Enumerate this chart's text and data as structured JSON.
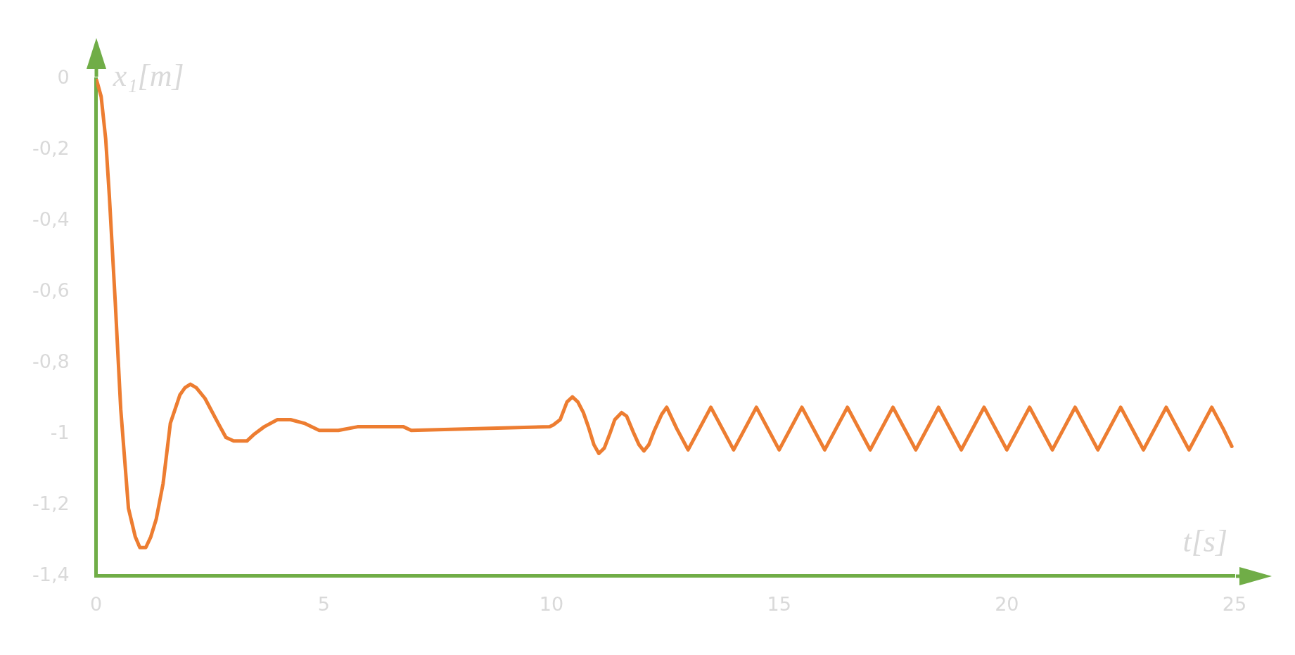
{
  "chart_data": {
    "type": "line",
    "xlabel": "t[s]",
    "ylabel": "x₁[m]",
    "xlim": [
      0,
      25
    ],
    "ylim": [
      -1.4,
      0
    ],
    "xticks": [
      0,
      5,
      10,
      15,
      20,
      25
    ],
    "yticks": [
      {
        "value": -1.4,
        "label": "-1,4"
      },
      {
        "value": -1.2,
        "label": "-1,2"
      },
      {
        "value": -1,
        "label": "-1"
      },
      {
        "value": -0.8,
        "label": "-0,8"
      },
      {
        "value": -0.6,
        "label": "-0,6"
      },
      {
        "value": -0.4,
        "label": "-0,4"
      },
      {
        "value": -0.2,
        "label": "-0,2"
      },
      {
        "value": 0,
        "label": "0"
      }
    ],
    "grid": false,
    "legend": false,
    "marker": "none",
    "line_style": "solid",
    "series": [
      {
        "color": "#ed7d31",
        "x": [
          0,
          0.03,
          0.11,
          0.21,
          0.29,
          0.42,
          0.54,
          0.71,
          0.86,
          0.96,
          1.09,
          1.2,
          1.32,
          1.47,
          1.63,
          1.84,
          1.95,
          2.07,
          2.2,
          2.39,
          2.68,
          2.85,
          3.02,
          3.19,
          3.31,
          3.48,
          3.69,
          3.98,
          4.27,
          4.57,
          4.9,
          5.32,
          5.74,
          6.75,
          6.92,
          9.96,
          10.04,
          10.19,
          10.34,
          10.46,
          10.58,
          10.7,
          10.81,
          10.93,
          11.04,
          11.16,
          11.28,
          11.39,
          11.54,
          11.65,
          11.8,
          11.92,
          12.03,
          12.14,
          12.26,
          12.42,
          12.53,
          12.75,
          13,
          13.25,
          13.5,
          13.75,
          14,
          14.25,
          14.5,
          14.75,
          15,
          15.25,
          15.5,
          15.75,
          16,
          16.25,
          16.5,
          16.75,
          17,
          17.25,
          17.5,
          17.75,
          18,
          18.25,
          18.5,
          18.75,
          19,
          19.25,
          19.5,
          19.75,
          20,
          20.25,
          20.5,
          20.75,
          21,
          21.25,
          21.5,
          21.75,
          22,
          22.25,
          22.5,
          22.75,
          23,
          23.25,
          23.5,
          23.75,
          24,
          24.25,
          24.5,
          24.75,
          24.94
        ],
        "values": [
          0,
          -0.013,
          -0.05,
          -0.17,
          -0.33,
          -0.63,
          -0.93,
          -1.21,
          -1.29,
          -1.32,
          -1.32,
          -1.29,
          -1.24,
          -1.14,
          -0.97,
          -0.89,
          -0.87,
          -0.86,
          -0.87,
          -0.9,
          -0.97,
          -1.01,
          -1.02,
          -1.02,
          -1.02,
          -1,
          -0.98,
          -0.96,
          -0.96,
          -0.97,
          -0.99,
          -0.99,
          -0.98,
          -0.98,
          -0.99,
          -0.98,
          -0.975,
          -0.96,
          -0.91,
          -0.896,
          -0.91,
          -0.94,
          -0.98,
          -1.03,
          -1.055,
          -1.04,
          -1,
          -0.96,
          -0.94,
          -0.95,
          -0.996,
          -1.03,
          -1.048,
          -1.03,
          -0.99,
          -0.945,
          -0.925,
          -0.985,
          -1.045,
          -0.985,
          -0.925,
          -0.985,
          -1.045,
          -0.985,
          -0.925,
          -0.985,
          -1.045,
          -0.985,
          -0.925,
          -0.985,
          -1.045,
          -0.985,
          -0.925,
          -0.985,
          -1.045,
          -0.985,
          -0.925,
          -0.985,
          -1.045,
          -0.985,
          -0.925,
          -0.985,
          -1.045,
          -0.985,
          -0.925,
          -0.985,
          -1.045,
          -0.985,
          -0.925,
          -0.985,
          -1.045,
          -0.985,
          -0.925,
          -0.985,
          -1.045,
          -0.985,
          -0.925,
          -0.985,
          -1.045,
          -0.985,
          -0.925,
          -0.985,
          -1.045,
          -0.985,
          -0.925,
          -0.985,
          -1.035
        ]
      }
    ]
  }
}
